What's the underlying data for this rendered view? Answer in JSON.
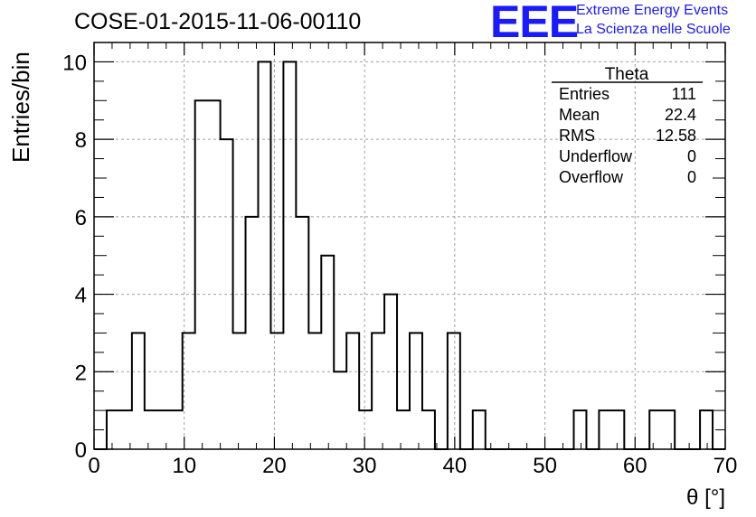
{
  "header": {
    "title": "COSE-01-2015-11-06-00110",
    "logo_text": "EEE",
    "logo_line1": "Extreme Energy Events",
    "logo_line2": "La Scienza nelle Scuole"
  },
  "stats": {
    "name": "Theta",
    "rows": [
      {
        "label": "Entries",
        "value": "111"
      },
      {
        "label": "Mean",
        "value": "22.4"
      },
      {
        "label": "RMS",
        "value": "12.58"
      },
      {
        "label": "Underflow",
        "value": "0"
      },
      {
        "label": "Overflow",
        "value": "0"
      }
    ]
  },
  "chart_data": {
    "type": "bar",
    "histogram": true,
    "xlabel": "θ [°]",
    "ylabel": "Entries/bin",
    "xlim": [
      0,
      70
    ],
    "ylim": [
      0,
      10.5
    ],
    "grid": true,
    "bin_width": 1.4,
    "bin_start": 0,
    "values": [
      0,
      1,
      1,
      3,
      1,
      1,
      1,
      3,
      9,
      9,
      8,
      3,
      6,
      10,
      3,
      10,
      6,
      3,
      5,
      2,
      3,
      1,
      3,
      4,
      1,
      3,
      1,
      0,
      3,
      0,
      1,
      0,
      0,
      0,
      0,
      0,
      0,
      0,
      1,
      0,
      1,
      1,
      0,
      0,
      1,
      1,
      0,
      0,
      1,
      0
    ],
    "xticks": [
      "0",
      "10",
      "20",
      "30",
      "40",
      "50",
      "60",
      "70"
    ],
    "yticks": [
      "0",
      "2",
      "4",
      "6",
      "8",
      "10"
    ]
  }
}
